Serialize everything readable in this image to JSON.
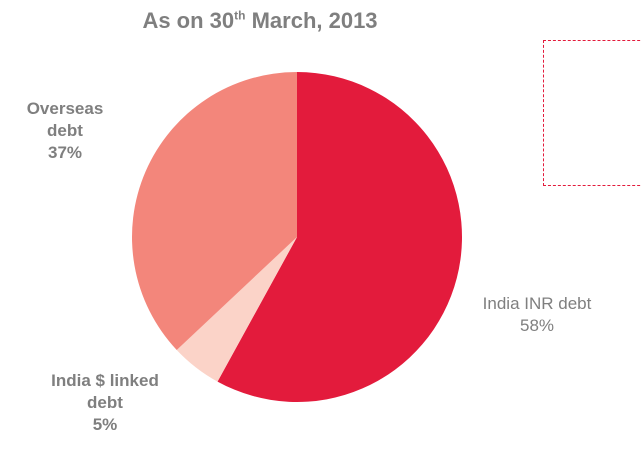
{
  "chart_data": {
    "type": "pie",
    "title": "As on 30th March, 2013",
    "title_parts": {
      "prefix": "As on 30",
      "superscript": "th",
      "suffix": " March, 2013"
    },
    "slices": [
      {
        "label": "India INR debt",
        "value": 58,
        "value_label": "58%",
        "color": "#e31b3c",
        "bold": false
      },
      {
        "label": "India $ linked debt",
        "value": 5,
        "value_label": "5%",
        "color": "#fbd3c8",
        "bold": true
      },
      {
        "label": "Overseas debt",
        "value": 37,
        "value_label": "37%",
        "color": "#f3867b",
        "bold": true
      }
    ],
    "legend": "none"
  }
}
